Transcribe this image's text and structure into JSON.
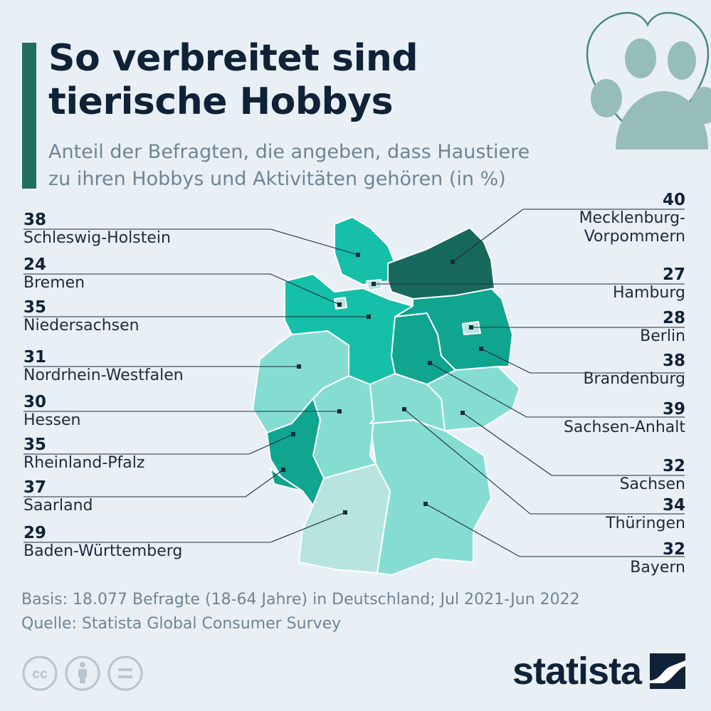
{
  "title_lines": [
    "So verbreitet sind",
    "tierische Hobbys"
  ],
  "subtitle_lines": [
    "Anteil der Befragten, die angeben, dass Haustiere",
    "zu ihren Hobbys und Aktivitäten gehören (in %)"
  ],
  "colors": {
    "accent": "#1f6e5e",
    "scale_lowest": "#b7e4de",
    "scale_low": "#85ddd2",
    "scale_mid": "#15bfa8",
    "scale_high": "#0fa58f",
    "scale_highest": "#17695c"
  },
  "chart_data": {
    "type": "choropleth",
    "unit": "%",
    "regions": [
      {
        "name": "Schleswig-Holstein",
        "value": 38
      },
      {
        "name": "Bremen",
        "value": 24
      },
      {
        "name": "Niedersachsen",
        "value": 35
      },
      {
        "name": "Nordrhein-Westfalen",
        "value": 31
      },
      {
        "name": "Hessen",
        "value": 30
      },
      {
        "name": "Rheinland-Pfalz",
        "value": 35
      },
      {
        "name": "Saarland",
        "value": 37
      },
      {
        "name": "Baden-Württemberg",
        "value": 29
      },
      {
        "name": "Mecklenburg-Vorpommern",
        "value": 40
      },
      {
        "name": "Hamburg",
        "value": 27
      },
      {
        "name": "Berlin",
        "value": 28
      },
      {
        "name": "Brandenburg",
        "value": 38
      },
      {
        "name": "Sachsen-Anhalt",
        "value": 39
      },
      {
        "name": "Sachsen",
        "value": 32
      },
      {
        "name": "Thüringen",
        "value": 34
      },
      {
        "name": "Bayern",
        "value": 32
      }
    ],
    "labels_left": [
      {
        "value": "38",
        "name": "Schleswig-Holstein"
      },
      {
        "value": "24",
        "name": "Bremen"
      },
      {
        "value": "35",
        "name": "Niedersachsen"
      },
      {
        "value": "31",
        "name": "Nordrhein-Westfalen"
      },
      {
        "value": "30",
        "name": "Hessen"
      },
      {
        "value": "35",
        "name": "Rheinland-Pfalz"
      },
      {
        "value": "37",
        "name": "Saarland"
      },
      {
        "value": "29",
        "name": "Baden-Württemberg"
      }
    ],
    "labels_right": [
      {
        "value": "40",
        "name_lines": [
          "Mecklenburg-",
          "Vorpommern"
        ]
      },
      {
        "value": "27",
        "name_lines": [
          "Hamburg"
        ]
      },
      {
        "value": "28",
        "name_lines": [
          "Berlin"
        ]
      },
      {
        "value": "38",
        "name_lines": [
          "Brandenburg"
        ]
      },
      {
        "value": "39",
        "name_lines": [
          "Sachsen-Anhalt"
        ]
      },
      {
        "value": "32",
        "name_lines": [
          "Sachsen"
        ]
      },
      {
        "value": "34",
        "name_lines": [
          "Thüringen"
        ]
      },
      {
        "value": "32",
        "name_lines": [
          "Bayern"
        ]
      }
    ]
  },
  "footer": {
    "basis": "Basis: 18.077 Befragte (18-64 Jahre) in Deutschland; Jul 2021-Jun 2022",
    "source": "Quelle: Statista Global Consumer Survey"
  },
  "license_icons": [
    "cc-icon",
    "attribution-icon",
    "no-derivatives-icon"
  ],
  "logo": {
    "text": "statista"
  }
}
